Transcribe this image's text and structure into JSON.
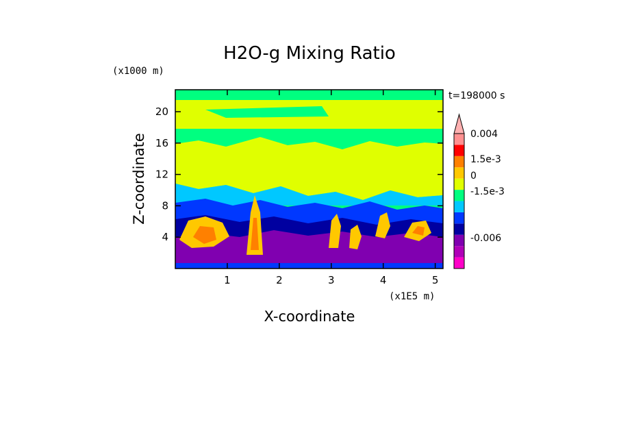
{
  "chart_data": {
    "type": "heatmap",
    "title": "H2O-g Mixing Ratio",
    "xlabel": "X-coordinate",
    "ylabel": "Z-coordinate",
    "x_unit": "(x1E5 m)",
    "y_unit": "(x1000 m)",
    "time_label": "t=198000 s",
    "xlim": [
      0,
      5.15
    ],
    "ylim": [
      0,
      22.8
    ],
    "x_ticks": [
      1,
      2,
      3,
      4,
      5
    ],
    "y_ticks": [
      4,
      8,
      12,
      16,
      20
    ],
    "colorbar": {
      "colors": [
        "#ff00c8",
        "#b000b8",
        "#8000b0",
        "#0000a0",
        "#0038ff",
        "#00c8ff",
        "#00ff80",
        "#e0ff00",
        "#ffc800",
        "#ff8000",
        "#ff0000",
        "#ff9090"
      ],
      "labels": [
        "0.004",
        "1.5e-3",
        "0",
        "-1.5e-3",
        "-0.006"
      ]
    },
    "grid": false
  }
}
